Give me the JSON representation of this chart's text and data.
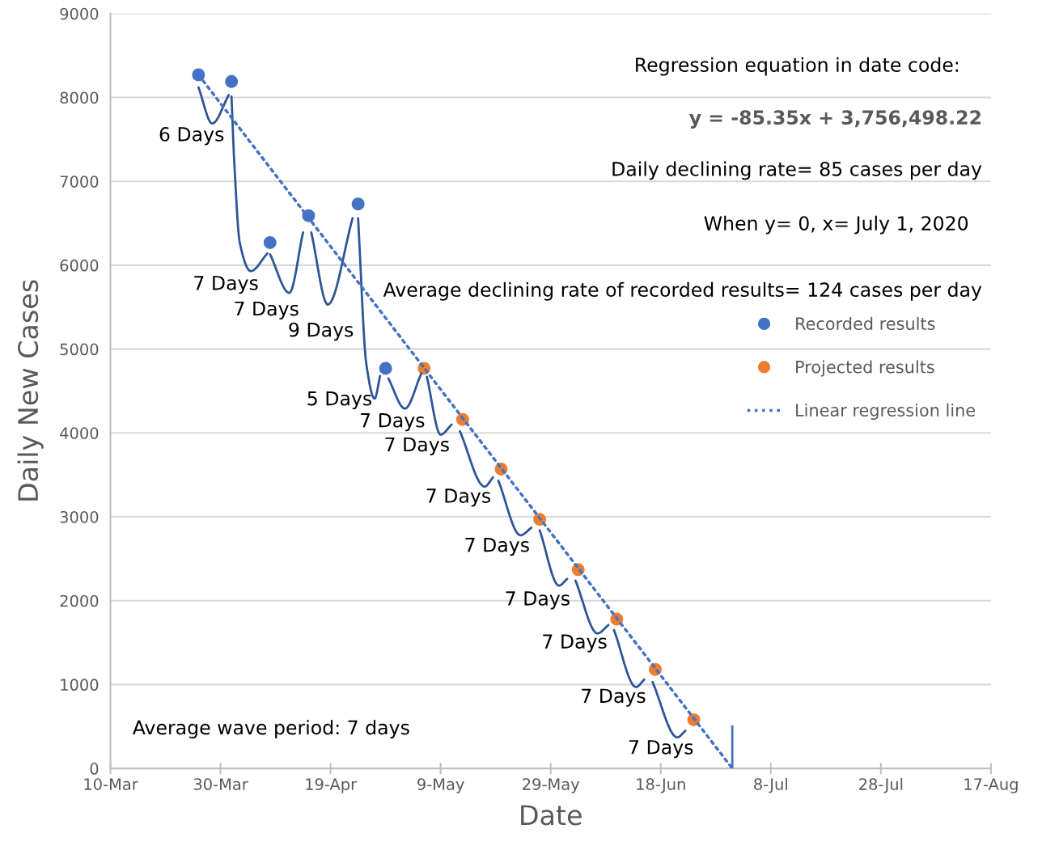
{
  "chart_data": {
    "type": "scatter",
    "xlabel": "Date",
    "ylabel": "Daily New Cases",
    "xlim": [
      "2020-03-10",
      "2020-08-17"
    ],
    "xticks": [
      {
        "value": "2020-03-10",
        "label": "10-Mar"
      },
      {
        "value": "2020-03-30",
        "label": "30-Mar"
      },
      {
        "value": "2020-04-19",
        "label": "19-Apr"
      },
      {
        "value": "2020-05-09",
        "label": "9-May"
      },
      {
        "value": "2020-05-29",
        "label": "29-May"
      },
      {
        "value": "2020-06-18",
        "label": "18-Jun"
      },
      {
        "value": "2020-07-08",
        "label": "8-Jul"
      },
      {
        "value": "2020-07-28",
        "label": "28-Jul"
      },
      {
        "value": "2020-08-17",
        "label": "17-Aug"
      }
    ],
    "ylim": [
      0,
      9000
    ],
    "yticks": [
      0,
      1000,
      2000,
      3000,
      4000,
      5000,
      6000,
      7000,
      8000,
      9000
    ],
    "grid": "y",
    "legend": "right",
    "series": [
      {
        "type": "line",
        "color": "#2f5597",
        "x": [
          "2020-03-26",
          "2020-03-28T12:00",
          "2020-03-31T12:00"
        ],
        "values": [
          8120,
          7690,
          8030
        ]
      },
      {
        "type": "line",
        "color": "#2f5597",
        "x": [
          "2020-04-01",
          "2020-04-01T12:00",
          "2020-04-02T12:00",
          "2020-04-04T12:00",
          "2020-04-07T12:00"
        ],
        "values": [
          8010,
          7230,
          6270,
          5930,
          6140
        ]
      },
      {
        "type": "line",
        "color": "#2f5597",
        "x": [
          "2020-04-08",
          "2020-04-11T12:00",
          "2020-04-14"
        ],
        "values": [
          6130,
          5670,
          6390
        ]
      },
      {
        "type": "line",
        "color": "#2f5597",
        "x": [
          "2020-04-15T12:00",
          "2020-04-18T12:00",
          "2020-04-23"
        ],
        "values": [
          6390,
          5530,
          6560
        ]
      },
      {
        "type": "line",
        "color": "#2f5597",
        "x": [
          "2020-04-24",
          "2020-04-25T12:00",
          "2020-04-27",
          "2020-04-28"
        ],
        "values": [
          6560,
          4820,
          4410,
          4680
        ]
      },
      {
        "type": "line",
        "color": "#2f5597",
        "x": [
          "2020-04-29T12:00",
          "2020-05-02T12:00",
          "2020-05-05T12:00"
        ],
        "values": [
          4650,
          4290,
          4710
        ]
      },
      {
        "type": "line",
        "color": "#2f5597",
        "x": [
          "2020-05-06T12:00",
          "2020-05-09",
          "2020-05-11"
        ],
        "values": [
          4670,
          3980,
          4100
        ]
      },
      {
        "type": "line",
        "color": "#2f5597",
        "x": [
          "2020-05-12T12:00",
          "2020-05-17",
          "2020-05-18T12:00"
        ],
        "values": [
          4020,
          3360,
          3470
        ]
      },
      {
        "type": "line",
        "color": "#2f5597",
        "x": [
          "2020-05-19T12:00",
          "2020-05-23T12:00",
          "2020-05-25T12:00"
        ],
        "values": [
          3430,
          2780,
          2870
        ]
      },
      {
        "type": "line",
        "color": "#2f5597",
        "x": [
          "2020-05-27",
          "2020-05-30T12:00",
          "2020-06-01"
        ],
        "values": [
          2840,
          2180,
          2260
        ]
      },
      {
        "type": "line",
        "color": "#2f5597",
        "x": [
          "2020-06-02T12:00",
          "2020-06-06T12:00",
          "2020-06-08T12:00"
        ],
        "values": [
          2240,
          1610,
          1710
        ]
      },
      {
        "type": "line",
        "color": "#2f5597",
        "x": [
          "2020-06-09T12:00",
          "2020-06-13T12:00",
          "2020-06-15"
        ],
        "values": [
          1650,
          970,
          1060
        ]
      },
      {
        "type": "line",
        "color": "#2f5597",
        "x": [
          "2020-06-16T12:00",
          "2020-06-21",
          "2020-06-22T12:00"
        ],
        "values": [
          1030,
          370,
          450
        ]
      },
      {
        "type": "line",
        "name": "Linear regression line",
        "color": "#4472c4",
        "line_style": "dotted",
        "x": [
          "2020-03-26",
          "2020-07-01"
        ],
        "values": [
          8270,
          0
        ]
      },
      {
        "name": "Recorded results",
        "color": "#4472c4",
        "marker": "circle",
        "x": [
          "2020-03-26",
          "2020-04-01",
          "2020-04-08",
          "2020-04-15",
          "2020-04-24",
          "2020-04-29"
        ],
        "values": [
          8270,
          8190,
          6270,
          6590,
          6730,
          4770
        ]
      },
      {
        "name": "Projected results",
        "color": "#ed7d31",
        "marker": "circle",
        "x": [
          "2020-05-06",
          "2020-05-13",
          "2020-05-20",
          "2020-05-27",
          "2020-06-03",
          "2020-06-10",
          "2020-06-17",
          "2020-06-24"
        ],
        "values": [
          4770,
          4160,
          3570,
          2970,
          2370,
          1780,
          1180,
          580
        ]
      },
      {
        "type": "line",
        "color": "#4472c4",
        "x": [
          "2020-07-01",
          "2020-07-01"
        ],
        "values": [
          0,
          500
        ]
      }
    ],
    "annotations": [
      "Regression equation in date code:",
      "y = -85.35x + 3,756,498.22",
      "Daily declining rate= 85 cases per day",
      "When y= 0, x= July 1, 2020",
      "Average declining rate of recorded results= 124 cases per day",
      "Average wave period: 7 days",
      "6 Days",
      "7 Days",
      "7 Days",
      "9 Days",
      "5 Days",
      "7 Days",
      "7 Days",
      "7 Days",
      "7 Days",
      "7 Days",
      "7 Days",
      "7 Days",
      "7 Days"
    ]
  }
}
